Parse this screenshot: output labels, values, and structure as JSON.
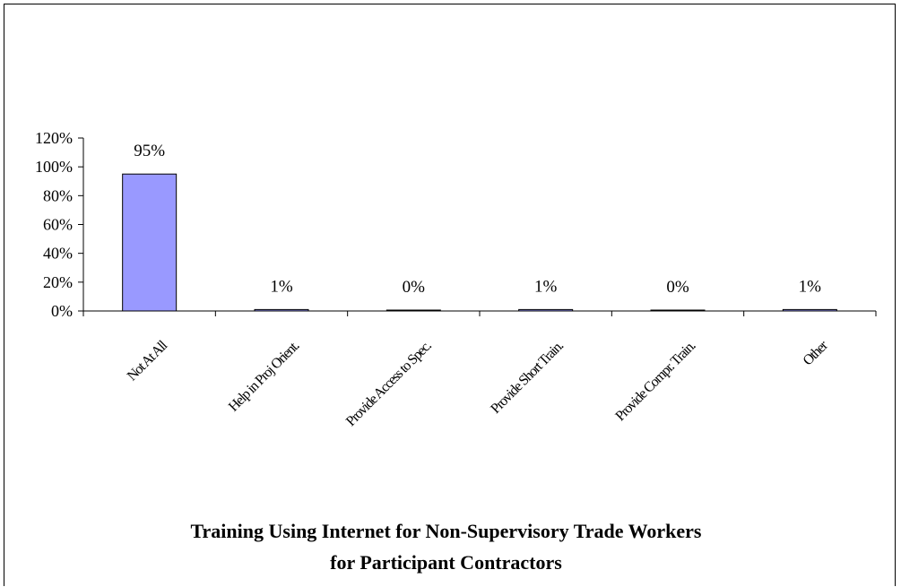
{
  "chart_data": {
    "type": "bar",
    "title_line1": "Training Using Internet for Non-Supervisory Trade Workers",
    "title_line2": "for Participant Contractors",
    "categories": [
      "Not At All",
      "Help in Proj Orient.",
      "Provide Access to Spec.",
      "Provide Short Train.",
      "Provide Compr. Train.",
      "Other"
    ],
    "values": [
      95,
      1,
      0,
      1,
      0,
      1
    ],
    "data_labels": [
      "95%",
      "1%",
      "0%",
      "1%",
      "0%",
      "1%"
    ],
    "ylim": [
      0,
      120
    ],
    "yticks": [
      "0%",
      "20%",
      "40%",
      "60%",
      "80%",
      "100%",
      "120%"
    ],
    "bar_color": "#9999ff",
    "grid": false,
    "legend": "none"
  }
}
